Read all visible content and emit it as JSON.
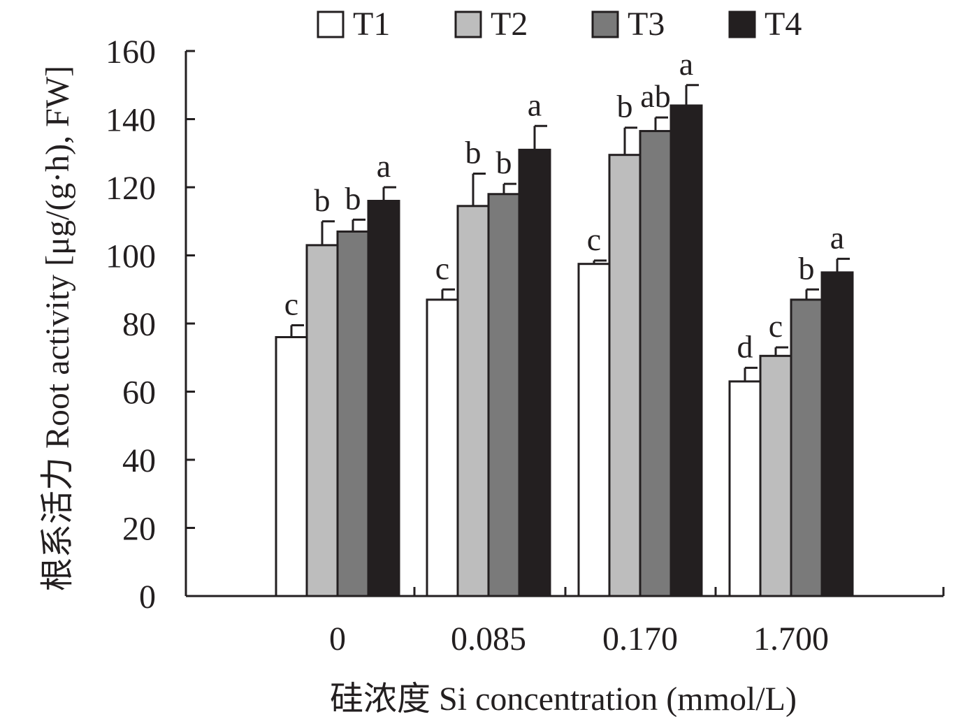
{
  "chart_data": {
    "type": "bar",
    "xlabel": "硅浓度 Si concentration (mmol/L)",
    "ylabel": "根系活力 Root activity [μg/(g·h), FW]",
    "ylim": [
      0,
      160
    ],
    "yticks": [
      "0",
      "20",
      "40",
      "60",
      "80",
      "100",
      "120",
      "140",
      "160"
    ],
    "categories": [
      "0",
      "0.085",
      "0.170",
      "1.700"
    ],
    "legend_position": "top",
    "grid": false,
    "series": [
      {
        "name": "T1",
        "color": "#ffffff",
        "values": [
          76,
          87,
          97.5,
          63
        ],
        "errors": [
          3.5,
          3,
          1,
          4
        ],
        "labels": [
          "c",
          "c",
          "c",
          "d"
        ]
      },
      {
        "name": "T2",
        "color": "#bdbdbd",
        "values": [
          103,
          114.5,
          129.5,
          70.5
        ],
        "errors": [
          7,
          9.5,
          8,
          2.5
        ],
        "labels": [
          "b",
          "b",
          "b",
          "c"
        ]
      },
      {
        "name": "T3",
        "color": "#7a7a7a",
        "values": [
          107,
          118,
          136.5,
          87
        ],
        "errors": [
          3.5,
          3,
          4,
          3
        ],
        "labels": [
          "b",
          "b",
          "ab",
          "b"
        ]
      },
      {
        "name": "T4",
        "color": "#231f20",
        "values": [
          116,
          131,
          144,
          95
        ],
        "errors": [
          4,
          7,
          6,
          4
        ],
        "labels": [
          "a",
          "a",
          "a",
          "a"
        ]
      }
    ]
  }
}
